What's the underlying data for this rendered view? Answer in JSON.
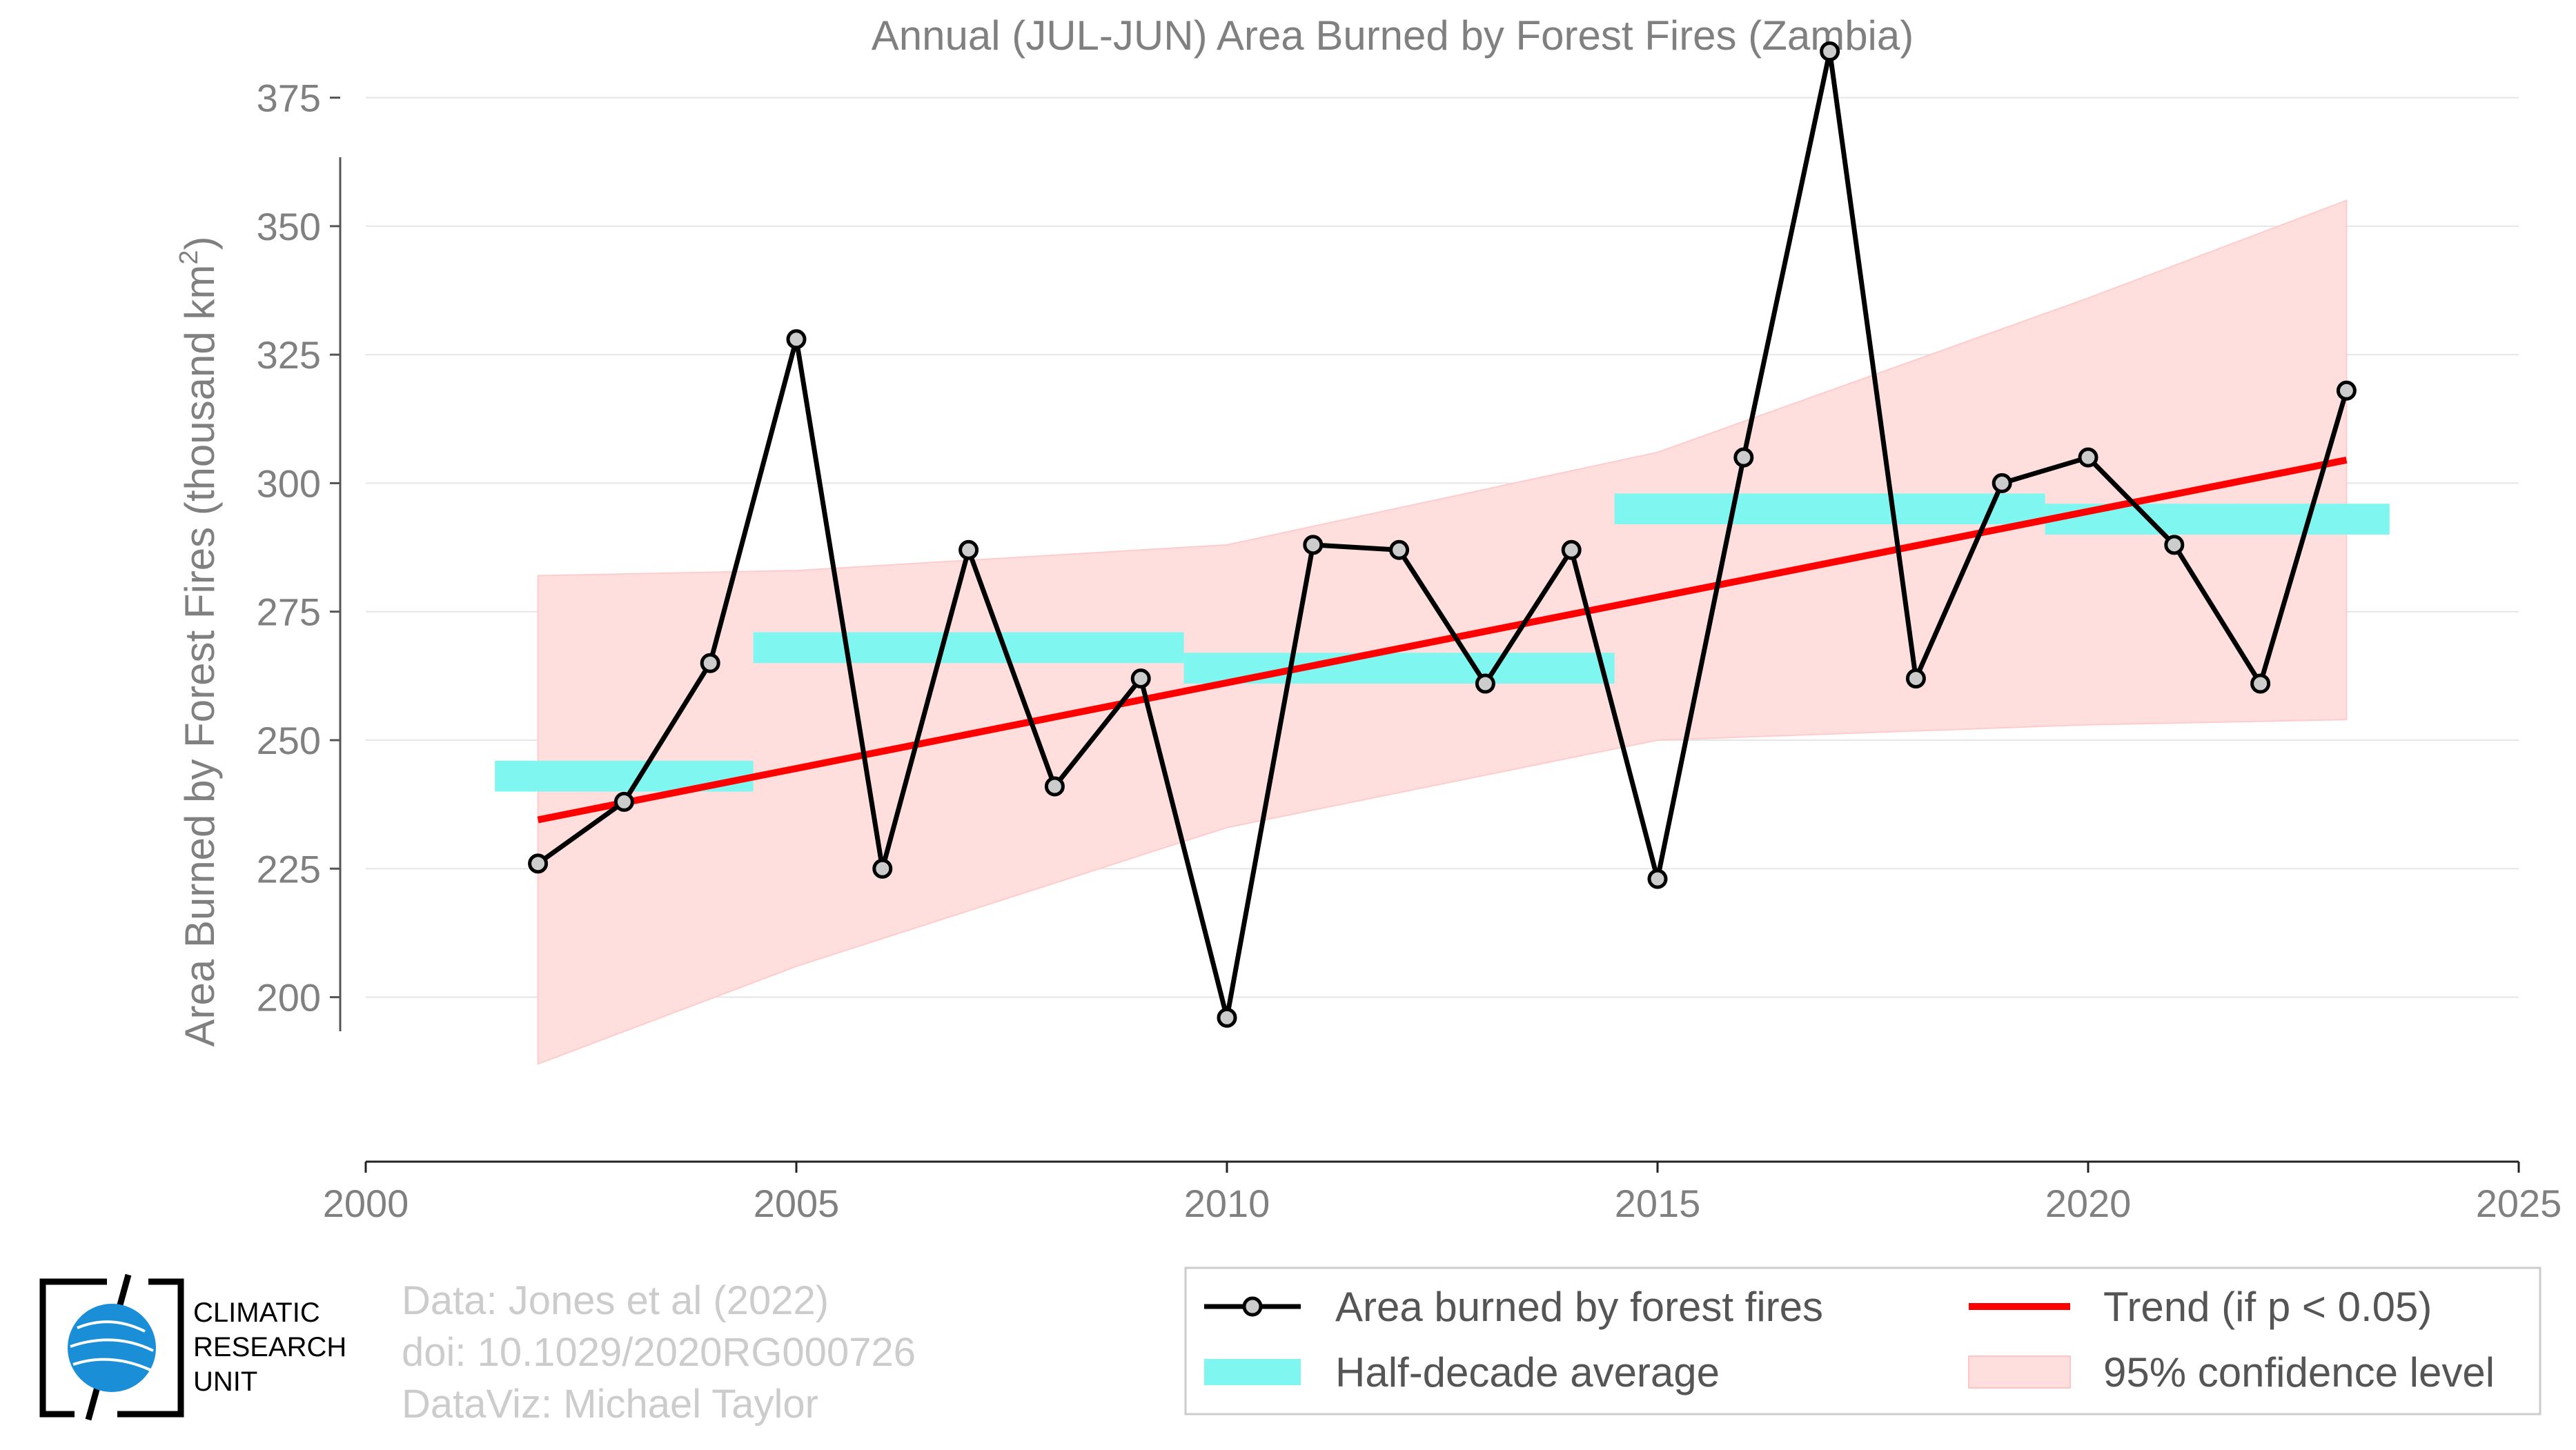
{
  "chart_data": {
    "type": "line",
    "title": "Annual (JUL-JUN) Area Burned by Forest Fires (Zambia)",
    "ylabel": "Area Burned by Forest Fires (thousand km",
    "ylabel_sup": "2",
    "ylabel_close": ")",
    "xlim": [
      2000,
      2025
    ],
    "ylim": [
      168,
      394
    ],
    "x_ticks": [
      2000,
      2005,
      2010,
      2015,
      2020,
      2025
    ],
    "y_ticks": [
      200,
      225,
      250,
      275,
      300,
      325,
      350,
      375
    ],
    "grid": true,
    "legend_position": "bottom-right",
    "series": [
      {
        "name": "Area burned by forest fires",
        "color": "#000000",
        "marker_fill": "#cccccc",
        "x": [
          2002,
          2003,
          2004,
          2005,
          2006,
          2007,
          2008,
          2009,
          2010,
          2011,
          2012,
          2013,
          2014,
          2015,
          2016,
          2017,
          2018,
          2019,
          2020,
          2021,
          2022,
          2023
        ],
        "y": [
          226,
          238,
          265,
          328,
          225,
          287,
          241,
          262,
          196,
          288,
          287,
          261,
          287,
          223,
          305,
          384,
          262,
          300,
          305,
          288,
          261,
          318
        ]
      }
    ],
    "half_decade_average": {
      "name": "Half-decade average",
      "color": "#7ff6f0",
      "segments": [
        {
          "x0": 2001.5,
          "x1": 2004.5,
          "y0": 240,
          "y1": 246
        },
        {
          "x0": 2004.5,
          "x1": 2009.5,
          "y0": 265,
          "y1": 271
        },
        {
          "x0": 2009.5,
          "x1": 2014.5,
          "y0": 261,
          "y1": 267
        },
        {
          "x0": 2014.5,
          "x1": 2019.5,
          "y0": 292,
          "y1": 298
        },
        {
          "x0": 2019.5,
          "x1": 2023.5,
          "y0": 290,
          "y1": 296
        }
      ]
    },
    "trend": {
      "name": "Trend (if p < 0.05)",
      "color": "#ff0000",
      "x": [
        2002,
        2023
      ],
      "y": [
        234.5,
        304.5
      ]
    },
    "confidence": {
      "name": "95% confidence level",
      "color": "#ffdede",
      "x": [
        2002,
        2005,
        2010,
        2015,
        2020,
        2023
      ],
      "upper": [
        282,
        283,
        288,
        306,
        336,
        355
      ],
      "lower": [
        187,
        206,
        233,
        250,
        253,
        254
      ]
    }
  },
  "credits": {
    "line1": "Data: Jones et al (2022)",
    "line2": "doi: 10.1029/2020RG000726",
    "line3": "DataViz: Michael Taylor"
  },
  "logo": {
    "line1": "CLIMATIC",
    "line2": "RESEARCH",
    "line3": "UNIT"
  }
}
